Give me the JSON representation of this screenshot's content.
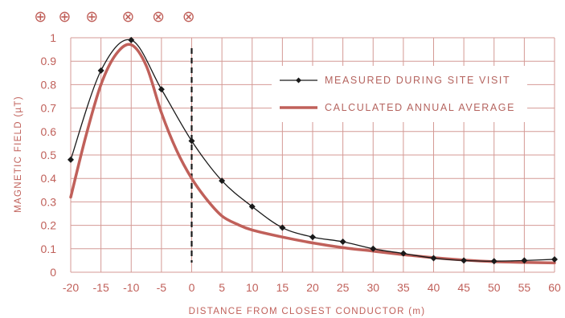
{
  "chart_data": {
    "type": "line",
    "xlabel": "DISTANCE FROM CLOSEST CONDUCTOR (m)",
    "ylabel": "MAGNETIC FIELD (µT)",
    "xlim": [
      -20,
      60
    ],
    "ylim": [
      0,
      1
    ],
    "x_ticks": [
      "-20",
      "-15",
      "-10",
      "-5",
      "0",
      "5",
      "10",
      "15",
      "20",
      "25",
      "30",
      "35",
      "40",
      "45",
      "50",
      "55",
      "60"
    ],
    "y_ticks": [
      "0",
      "0.1",
      "0.2",
      "0.3",
      "0.4",
      "0.5",
      "0.6",
      "0.7",
      "0.8",
      "0.9",
      "1"
    ],
    "grid": true,
    "legend_position": "top-right",
    "reference_line": {
      "x": 0,
      "style": "dashed"
    },
    "conductor_symbols": [
      {
        "symbol": "⊕",
        "x": -25
      },
      {
        "symbol": "⊕",
        "x": -21
      },
      {
        "symbol": "⊕",
        "x": -16.5
      },
      {
        "symbol": "⊗",
        "x": -10.5
      },
      {
        "symbol": "⊗",
        "x": -5.5
      },
      {
        "symbol": "⊗",
        "x": -0.5
      }
    ],
    "series": [
      {
        "name": "MEASURED DURING SITE VISIT",
        "color": "#1a1a1a",
        "marker": "diamond",
        "x": [
          -20,
          -15,
          -10,
          -5,
          0,
          5,
          10,
          15,
          20,
          25,
          30,
          35,
          40,
          45,
          50,
          55,
          60
        ],
        "y": [
          0.48,
          0.86,
          0.99,
          0.78,
          0.56,
          0.39,
          0.28,
          0.19,
          0.15,
          0.13,
          0.1,
          0.08,
          0.06,
          0.05,
          0.047,
          0.05,
          0.055
        ]
      },
      {
        "name": "CALCULATED ANNUAL AVERAGE",
        "color": "#c0605a",
        "marker": "none",
        "x": [
          -20,
          -17.5,
          -15,
          -12.5,
          -10,
          -7.5,
          -5,
          -2.5,
          0,
          2.5,
          5,
          7.5,
          10,
          15,
          20,
          25,
          30,
          35,
          40,
          45,
          50,
          55,
          60
        ],
        "y": [
          0.32,
          0.58,
          0.8,
          0.93,
          0.97,
          0.88,
          0.68,
          0.52,
          0.4,
          0.31,
          0.24,
          0.205,
          0.18,
          0.15,
          0.125,
          0.105,
          0.09,
          0.075,
          0.062,
          0.052,
          0.045,
          0.042,
          0.04
        ]
      }
    ]
  }
}
